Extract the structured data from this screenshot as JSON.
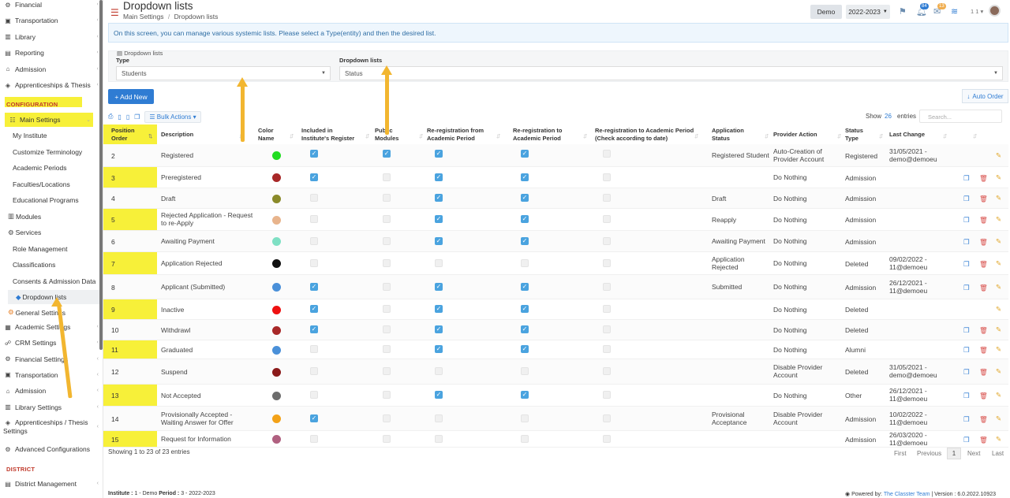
{
  "sidebar": {
    "top_items": [
      {
        "icon": "financial-icon",
        "glyph": "⚙",
        "label": "Financial"
      },
      {
        "icon": "bus-icon",
        "glyph": "▣",
        "label": "Transportation"
      },
      {
        "icon": "library-icon",
        "glyph": "▥",
        "label": "Library"
      },
      {
        "icon": "reporting-icon",
        "glyph": "▤",
        "label": "Reporting"
      },
      {
        "icon": "admission-icon",
        "glyph": "⌂",
        "label": "Admission"
      },
      {
        "icon": "thesis-icon",
        "glyph": "◈",
        "label": "Apprenticeships & Thesis"
      }
    ],
    "config_section": "CONFIGURATION",
    "main_settings": "Main Settings",
    "sub_items": [
      "My Institute",
      "Customize Terminology",
      "Academic Periods",
      "Faculties/Locations",
      "Educational Programs",
      "Modules",
      "Services",
      "Role Management",
      "Classifications",
      "Consents & Admission Data",
      "Dropdown lists",
      "General Settings"
    ],
    "bottom_items": [
      {
        "icon": "academic-icon",
        "glyph": "▦",
        "label": "Academic Settings"
      },
      {
        "icon": "crm-icon",
        "glyph": "☍",
        "label": "CRM Settings"
      },
      {
        "icon": "financial-icon",
        "glyph": "⚙",
        "label": "Financial Settings"
      },
      {
        "icon": "bus-icon",
        "glyph": "▣",
        "label": "Transportation"
      },
      {
        "icon": "admission-icon",
        "glyph": "⌂",
        "label": "Admission"
      },
      {
        "icon": "library-icon",
        "glyph": "▥",
        "label": "Library Settings"
      }
    ],
    "thesis_settings_line1": "Apprenticeships / Thesis",
    "thesis_settings_line2": "Settings",
    "advanced": "Advanced Configurations",
    "district_section": "DISTRICT",
    "district_management": "District Management"
  },
  "header": {
    "title": "Dropdown lists",
    "breadcrumb_1": "Main Settings",
    "breadcrumb_sep": "/",
    "breadcrumb_2": "Dropdown lists",
    "demo": "Demo",
    "year": "2022-2023",
    "badge_notifications": "84",
    "badge_messages": "13",
    "user": "1 1"
  },
  "info_text": "On this screen, you can manage various systemic lists. Please select a Type(entity) and then the desired list.",
  "filters": {
    "panel_title": "Dropdown lists",
    "type_label": "Type",
    "type_value": "Students",
    "list_label": "Dropdown lists",
    "list_value": "Status"
  },
  "buttons": {
    "add_new": "+ Add New",
    "auto_order": "Auto Order",
    "bulk_actions": "Bulk Actions"
  },
  "table_controls": {
    "show": "Show",
    "show_value": "26",
    "entries": "entries",
    "search_placeholder": "Search..."
  },
  "columns": {
    "position": [
      "Position",
      "Order"
    ],
    "description": "Description",
    "color": [
      "Color",
      "Name"
    ],
    "included": [
      "Included in",
      "Institute's Register"
    ],
    "public": [
      "Public",
      "Modules"
    ],
    "rereg_from": [
      "Re-registration from",
      "Academic Period"
    ],
    "rereg_to": [
      "Re-registration to",
      "Academic Period"
    ],
    "rereg_check": [
      "Re-registration to Academic Period",
      "(Check according to date)"
    ],
    "app_status": [
      "Application",
      "Status"
    ],
    "provider": "Provider Action",
    "status_type": [
      "Status",
      "Type"
    ],
    "last_change": "Last Change"
  },
  "rows": [
    {
      "pos": "2",
      "desc": [
        "Registered"
      ],
      "color": "#22dd22",
      "inc": true,
      "pub": true,
      "from": true,
      "to": true,
      "app": [
        "Registered Student"
      ],
      "prov": [
        "Auto-Creation of",
        "Provider Account"
      ],
      "type": "Registered",
      "change": [
        "31/05/2021 -",
        "demo@demoeu"
      ],
      "copy": false,
      "del": false
    },
    {
      "pos": "3",
      "desc": [
        "Preregistered"
      ],
      "color": "#a82828",
      "inc": true,
      "pub": false,
      "from": true,
      "to": true,
      "app": [],
      "prov": [
        "Do Nothing"
      ],
      "type": "Admission",
      "change": [],
      "copy": true,
      "del": true
    },
    {
      "pos": "4",
      "desc": [
        "Draft"
      ],
      "color": "#8a8a2a",
      "inc": false,
      "pub": false,
      "from": true,
      "to": true,
      "app": [
        "Draft"
      ],
      "prov": [
        "Do Nothing"
      ],
      "type": "Admission",
      "change": [],
      "copy": true,
      "del": true
    },
    {
      "pos": "5",
      "desc": [
        "Rejected Application - Request",
        "to re-Apply"
      ],
      "color": "#e8b48c",
      "inc": false,
      "pub": false,
      "from": true,
      "to": true,
      "app": [
        "Reapply"
      ],
      "prov": [
        "Do Nothing"
      ],
      "type": "Admission",
      "change": [],
      "copy": true,
      "del": true
    },
    {
      "pos": "6",
      "desc": [
        "Awaiting Payment"
      ],
      "color": "#7fe0c4",
      "inc": false,
      "pub": false,
      "from": true,
      "to": true,
      "app": [
        "Awaiting Payment"
      ],
      "prov": [
        "Do Nothing"
      ],
      "type": "Admission",
      "change": [],
      "copy": true,
      "del": true
    },
    {
      "pos": "7",
      "desc": [
        "Application Rejected"
      ],
      "color": "#111111",
      "inc": false,
      "pub": false,
      "from": false,
      "to": false,
      "app": [
        "Application",
        "Rejected"
      ],
      "prov": [
        "Do Nothing"
      ],
      "type": "Deleted",
      "change": [
        "09/02/2022 -",
        "11@demoeu"
      ],
      "copy": true,
      "del": true
    },
    {
      "pos": "8",
      "desc": [
        "Applicant (Submitted)"
      ],
      "color": "#4a90d9",
      "inc": true,
      "pub": false,
      "from": true,
      "to": true,
      "app": [
        "Submitted"
      ],
      "prov": [
        "Do Nothing"
      ],
      "type": "Admission",
      "change": [
        "26/12/2021 -",
        "11@demoeu"
      ],
      "copy": true,
      "del": true
    },
    {
      "pos": "9",
      "desc": [
        "Inactive"
      ],
      "color": "#ee1111",
      "inc": true,
      "pub": false,
      "from": true,
      "to": true,
      "app": [],
      "prov": [
        "Do Nothing"
      ],
      "type": "Deleted",
      "change": [],
      "copy": false,
      "del": false
    },
    {
      "pos": "10",
      "desc": [
        "Withdrawl"
      ],
      "color": "#a82828",
      "inc": true,
      "pub": false,
      "from": true,
      "to": true,
      "app": [],
      "prov": [
        "Do Nothing"
      ],
      "type": "Deleted",
      "change": [],
      "copy": true,
      "del": true
    },
    {
      "pos": "11",
      "desc": [
        "Graduated"
      ],
      "color": "#4a90d9",
      "inc": false,
      "pub": false,
      "from": true,
      "to": true,
      "app": [],
      "prov": [
        "Do Nothing"
      ],
      "type": "Alumni",
      "change": [],
      "copy": true,
      "del": true
    },
    {
      "pos": "12",
      "desc": [
        "Suspend"
      ],
      "color": "#8b1a1a",
      "inc": false,
      "pub": false,
      "from": false,
      "to": false,
      "app": [],
      "prov": [
        "Disable Provider",
        "Account"
      ],
      "type": "Deleted",
      "change": [
        "31/05/2021 -",
        "demo@demoeu"
      ],
      "copy": true,
      "del": true
    },
    {
      "pos": "13",
      "desc": [
        "Not Accepted"
      ],
      "color": "#6d6d6d",
      "inc": false,
      "pub": false,
      "from": true,
      "to": true,
      "app": [],
      "prov": [
        "Do Nothing"
      ],
      "type": "Other",
      "change": [
        "26/12/2021 -",
        "11@demoeu"
      ],
      "copy": true,
      "del": true
    },
    {
      "pos": "14",
      "desc": [
        "Provisionally Accepted -",
        "Waiting Answer for Offer"
      ],
      "color": "#f3a218",
      "inc": true,
      "pub": false,
      "from": false,
      "to": false,
      "app": [
        "Provisional",
        "Acceptance"
      ],
      "prov": [
        "Disable Provider",
        "Account"
      ],
      "type": "Admission",
      "change": [
        "10/02/2022 -",
        "11@demoeu"
      ],
      "copy": true,
      "del": true
    },
    {
      "pos": "15",
      "desc": [
        "Request for Information"
      ],
      "color": "#b06080",
      "inc": false,
      "pub": false,
      "from": false,
      "to": false,
      "app": [],
      "prov": [],
      "type": "Admission",
      "change": [
        "26/03/2020 -",
        "11@demoeu"
      ],
      "copy": true,
      "del": true
    }
  ],
  "footer": {
    "showing": "Showing 1 to 23 of 23 entries",
    "first": "First",
    "previous": "Previous",
    "page": "1",
    "next": "Next",
    "last": "Last",
    "institute_label": "Institute :",
    "institute_value": "1 - Demo",
    "period_label": "Period :",
    "period_value": "3 - 2022-2023",
    "powered": "Powered by:",
    "powered_link": "The Classter Team",
    "version": "| Version : 6.0.2022.10923"
  }
}
